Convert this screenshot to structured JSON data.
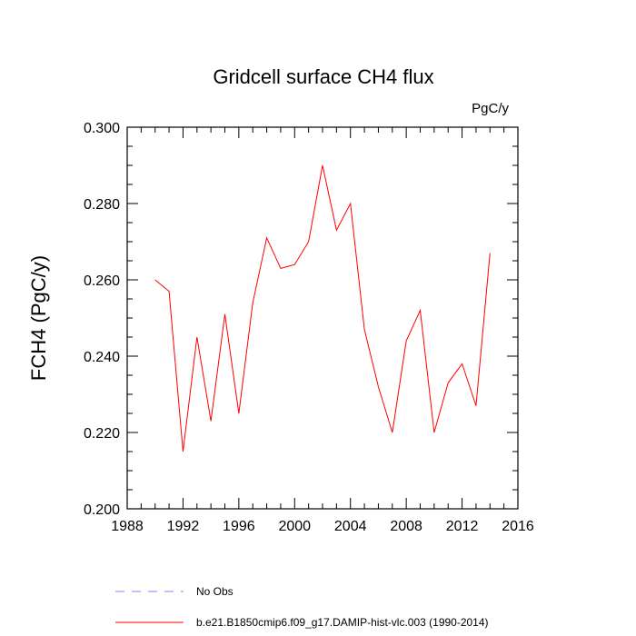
{
  "chart_data": {
    "type": "line",
    "title": "Gridcell surface CH4 flux",
    "units_label": "PgC/y",
    "ylabel": "FCH4  (PgC/y)",
    "xlabel": "",
    "xlim": [
      1988,
      2016
    ],
    "ylim": [
      0.2,
      0.3
    ],
    "x_ticks": [
      1988,
      1992,
      1996,
      2000,
      2004,
      2008,
      2012,
      2016
    ],
    "x_tick_labels": [
      "1988",
      "1992",
      "1996",
      "2000",
      "2004",
      "2008",
      "2012",
      "2016"
    ],
    "y_ticks": [
      0.2,
      0.22,
      0.24,
      0.26,
      0.28,
      0.3
    ],
    "y_tick_labels": [
      "0.200",
      "0.220",
      "0.240",
      "0.260",
      "0.280",
      "0.300"
    ],
    "grid": false,
    "legend_position": "bottom",
    "series": [
      {
        "name": "b.e21.B1850cmip6.f09_g17.DAMIP-hist-vlc.003 (1990-2014)",
        "color": "#ff0000",
        "style": "solid",
        "x": [
          1990,
          1991,
          1992,
          1993,
          1994,
          1995,
          1996,
          1997,
          1998,
          1999,
          2000,
          2001,
          2002,
          2003,
          2004,
          2005,
          2006,
          2007,
          2008,
          2009,
          2010,
          2011,
          2012,
          2013,
          2014
        ],
        "y": [
          0.26,
          0.257,
          0.215,
          0.245,
          0.223,
          0.251,
          0.225,
          0.254,
          0.271,
          0.263,
          0.264,
          0.27,
          0.29,
          0.273,
          0.28,
          0.247,
          0.232,
          0.22,
          0.244,
          0.252,
          0.22,
          0.233,
          0.238,
          0.227,
          0.267
        ]
      },
      {
        "name": "No Obs",
        "color": "#8080ff",
        "style": "dashed",
        "x": [],
        "y": []
      }
    ]
  }
}
